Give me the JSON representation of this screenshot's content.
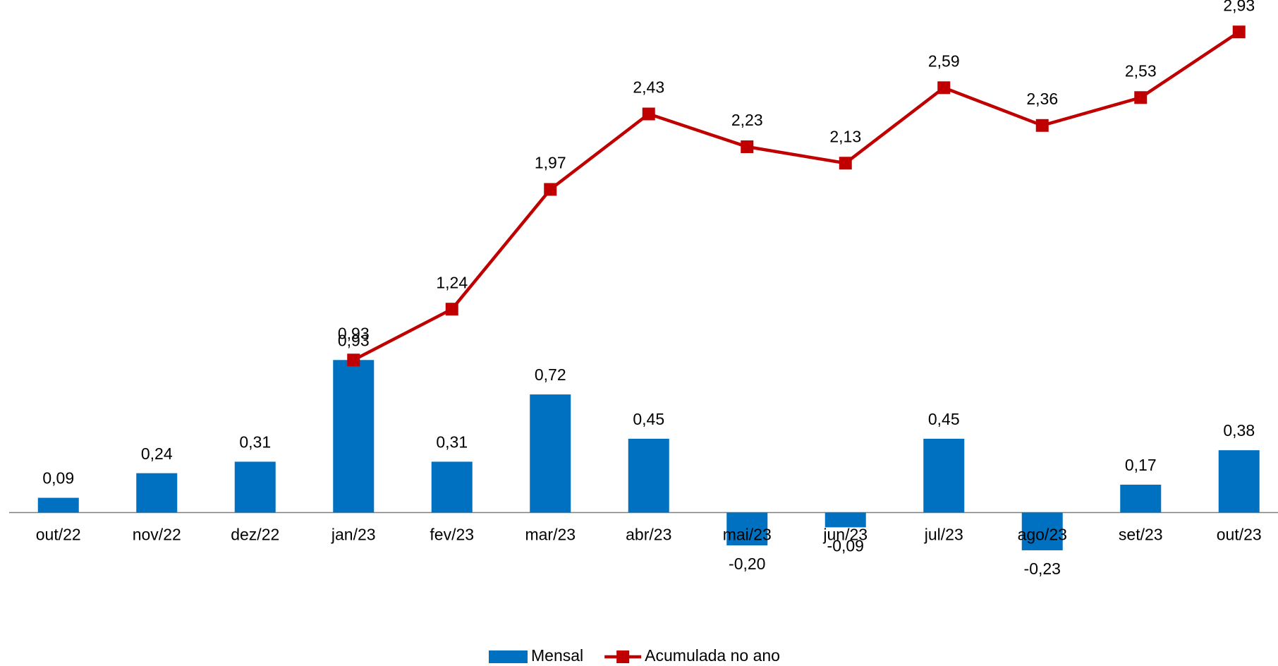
{
  "chart_data": {
    "type": "combo",
    "categories": [
      "out/22",
      "nov/22",
      "dez/22",
      "jan/23",
      "fev/23",
      "mar/23",
      "abr/23",
      "mai/23",
      "jun/23",
      "jul/23",
      "ago/23",
      "set/23",
      "out/23"
    ],
    "series": [
      {
        "name": "Mensal",
        "type": "bar",
        "color": "#0070c0",
        "values": [
          0.09,
          0.24,
          0.31,
          0.93,
          0.31,
          0.72,
          0.45,
          -0.2,
          -0.09,
          0.45,
          -0.23,
          0.17,
          0.38
        ],
        "value_labels": [
          "0,09",
          "0,24",
          "0,31",
          "0,93",
          "0,31",
          "0,72",
          "0,45",
          "-0,20",
          "-0,09",
          "0,45",
          "-0,23",
          "0,17",
          "0,38"
        ]
      },
      {
        "name": "Acumulada no ano",
        "type": "line",
        "color": "#c00000",
        "values": [
          null,
          null,
          null,
          0.93,
          1.24,
          1.97,
          2.43,
          2.23,
          2.13,
          2.59,
          2.36,
          2.53,
          2.93
        ],
        "value_labels": [
          null,
          null,
          null,
          "0,93",
          "1,24",
          "1,97",
          "2,43",
          "2,23",
          "2,13",
          "2,59",
          "2,36",
          "2,53",
          "2,93"
        ]
      }
    ],
    "ylim": [
      -0.6,
      3.0
    ],
    "legend": "bottom"
  }
}
